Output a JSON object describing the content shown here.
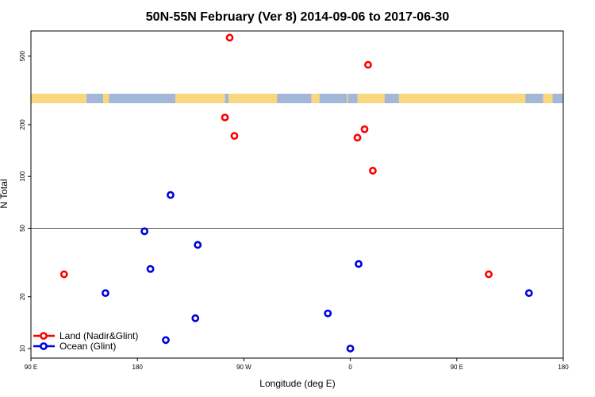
{
  "chart_data": {
    "type": "scatter",
    "title": "50N-55N February (Ver 8)   2014-09-06 to 2017-06-30",
    "xlabel": "Longitude (deg E)",
    "ylabel": "N Total",
    "x_ticks": [
      {
        "value": 90,
        "label": "90 E"
      },
      {
        "value": 180,
        "label": "180"
      },
      {
        "value": 270,
        "label": "90 W"
      },
      {
        "value": 360,
        "label": "0"
      },
      {
        "value": 450,
        "label": "90 E"
      },
      {
        "value": 540,
        "label": "180"
      }
    ],
    "y_ticks": [
      10,
      20,
      50,
      100,
      200,
      500
    ],
    "y_scale": "log",
    "xlim": [
      90,
      540
    ],
    "ylim": [
      8.8,
      700
    ],
    "grid": false,
    "reference_line": 50,
    "colors": {
      "land": "#ff0000",
      "ocean": "#0000e0",
      "map_ocean": "#a3b8d8",
      "map_land": "#f9d77e"
    },
    "legend": {
      "position": "bottom-left",
      "entries": [
        {
          "series": "land",
          "label": "Land (Nadir&Glint)"
        },
        {
          "series": "ocean",
          "label": "Ocean (Glint)"
        }
      ]
    },
    "series": [
      {
        "name": "Land (Nadir&Glint)",
        "key": "land",
        "points": [
          {
            "x": 118,
            "y": 27
          },
          {
            "x": 254,
            "y": 220
          },
          {
            "x": 258,
            "y": 640
          },
          {
            "x": 262,
            "y": 172
          },
          {
            "x": 366,
            "y": 168
          },
          {
            "x": 372,
            "y": 188
          },
          {
            "x": 375,
            "y": 445
          },
          {
            "x": 379,
            "y": 108
          },
          {
            "x": 477,
            "y": 27
          }
        ]
      },
      {
        "name": "Ocean (Glint)",
        "key": "ocean",
        "points": [
          {
            "x": 153,
            "y": 21
          },
          {
            "x": 186,
            "y": 48
          },
          {
            "x": 191,
            "y": 29
          },
          {
            "x": 204,
            "y": 11.2
          },
          {
            "x": 208,
            "y": 78
          },
          {
            "x": 229,
            "y": 15
          },
          {
            "x": 231,
            "y": 40
          },
          {
            "x": 341,
            "y": 16
          },
          {
            "x": 360,
            "y": 10
          },
          {
            "x": 367,
            "y": 31
          },
          {
            "x": 511,
            "y": 21
          }
        ]
      }
    ]
  }
}
